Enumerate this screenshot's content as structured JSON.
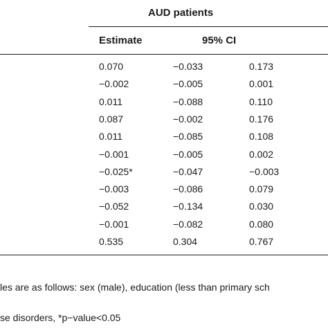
{
  "table": {
    "group_header": "AUD patients",
    "col_estimate": "Estimate",
    "col_ci": "95% CI",
    "rows": [
      {
        "estimate": "0.070",
        "lower": "−0.033",
        "upper": "0.173"
      },
      {
        "estimate": "−0.002",
        "lower": "−0.005",
        "upper": "0.001"
      },
      {
        "estimate": "0.011",
        "lower": "−0.088",
        "upper": "0.110"
      },
      {
        "estimate": "0.087",
        "lower": "−0.002",
        "upper": "0.176"
      },
      {
        "estimate": "0.011",
        "lower": "−0.085",
        "upper": "0.108"
      },
      {
        "estimate": "−0.001",
        "lower": "−0.005",
        "upper": "0.002"
      },
      {
        "estimate": "−0.025*",
        "lower": "−0.047",
        "upper": "−0.003"
      },
      {
        "estimate": "−0.003",
        "lower": "−0.086",
        "upper": "0.079"
      },
      {
        "estimate": "−0.052",
        "lower": "−0.134",
        "upper": "0.030"
      },
      {
        "estimate": "−0.001",
        "lower": "−0.082",
        "upper": "0.080"
      },
      {
        "estimate": "0.535",
        "lower": "0.304",
        "upper": "0.767"
      }
    ]
  },
  "footnotes": {
    "line1": "les are as follows: sex (male), education (less than primary sch",
    "line2": "se disorders, *p−value<0.05"
  }
}
